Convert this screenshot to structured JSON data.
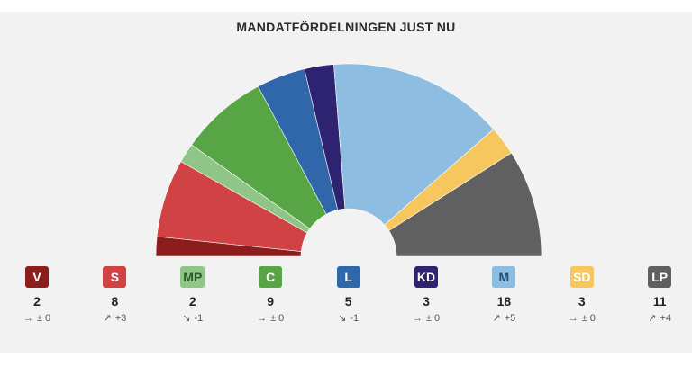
{
  "title": "MANDATFÖRDELNINGEN JUST NU",
  "chart_data": {
    "type": "pie",
    "subtype": "half-donut (parliament seat distribution)",
    "title": "MANDATFÖRDELNINGEN JUST NU",
    "total_seats": 61,
    "series": [
      {
        "name": "V",
        "seats": 2,
        "change": "± 0",
        "trend": "flat",
        "color": "#8b1d1d",
        "text_color": "#ffffff"
      },
      {
        "name": "S",
        "seats": 8,
        "change": "+3",
        "trend": "up",
        "color": "#d14245",
        "text_color": "#ffffff"
      },
      {
        "name": "MP",
        "seats": 2,
        "change": "-1",
        "trend": "down",
        "color": "#8fc587",
        "text_color": "#2a5a28"
      },
      {
        "name": "C",
        "seats": 9,
        "change": "± 0",
        "trend": "flat",
        "color": "#57a545",
        "text_color": "#ffffff"
      },
      {
        "name": "L",
        "seats": 5,
        "change": "-1",
        "trend": "down",
        "color": "#3067aa",
        "text_color": "#ffffff"
      },
      {
        "name": "KD",
        "seats": 3,
        "change": "± 0",
        "trend": "flat",
        "color": "#2e2370",
        "text_color": "#ffffff"
      },
      {
        "name": "M",
        "seats": 18,
        "change": "+5",
        "trend": "up",
        "color": "#8dbde0",
        "text_color": "#1f4f7a"
      },
      {
        "name": "SD",
        "seats": 3,
        "change": "± 0",
        "trend": "flat",
        "color": "#f6c75e",
        "text_color": "#ffffff"
      },
      {
        "name": "LP",
        "seats": 11,
        "change": "+4",
        "trend": "up",
        "color": "#606060",
        "text_color": "#ffffff"
      }
    ]
  },
  "icons": {
    "up": "arrow-up-right-icon",
    "down": "arrow-down-right-icon",
    "flat": "arrow-right-icon"
  }
}
